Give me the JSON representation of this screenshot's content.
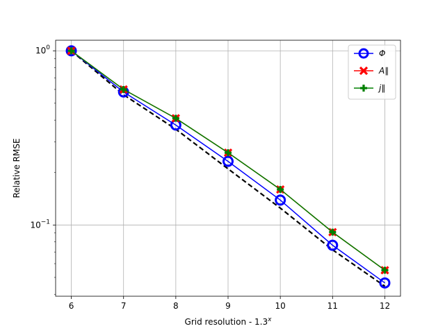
{
  "chart_data": {
    "type": "line",
    "yscale": "log",
    "xlabel_prefix": "Grid resolution - 1.3",
    "xlabel_sup": "x",
    "ylabel": "Relative RMSE",
    "x": [
      6,
      7,
      8,
      9,
      10,
      11,
      12
    ],
    "xlim": [
      5.7,
      12.3
    ],
    "ylim": [
      0.039,
      1.15
    ],
    "xticks": [
      "6",
      "7",
      "8",
      "9",
      "10",
      "11",
      "12"
    ],
    "yticks": [
      {
        "value": 1,
        "base": "10",
        "exp": "0"
      },
      {
        "value": 0.1,
        "base": "10",
        "exp": "−1"
      }
    ],
    "grid": true,
    "legend_position": "top-right",
    "series": [
      {
        "name": "Φ",
        "marker": "circle",
        "color": "#0000ff",
        "values": [
          1.0,
          0.58,
          0.375,
          0.232,
          0.139,
          0.0765,
          0.0465
        ]
      },
      {
        "name": "A∥",
        "marker": "x",
        "color": "#ff0000",
        "values": [
          1.0,
          0.6,
          0.41,
          0.26,
          0.16,
          0.091,
          0.055
        ]
      },
      {
        "name": "j∥",
        "marker": "plus",
        "color": "#008000",
        "values": [
          1.0,
          0.6,
          0.41,
          0.26,
          0.16,
          0.091,
          0.055
        ]
      },
      {
        "name": "",
        "style": "dashed",
        "color": "#000000",
        "values": [
          1.0,
          0.56,
          0.355,
          0.21,
          0.125,
          0.072,
          0.0445
        ]
      }
    ]
  }
}
